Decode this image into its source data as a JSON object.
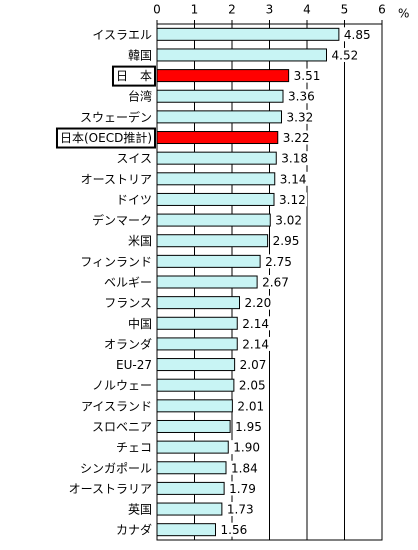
{
  "chart_data": {
    "type": "barh",
    "x_unit": "%",
    "categories": [
      "イスラエル",
      "韓国",
      "日　本",
      "台湾",
      "スウェーデン",
      "日本(OECD推計)",
      "スイス",
      "オーストリア",
      "ドイツ",
      "デンマーク",
      "米国",
      "フィンランド",
      "ベルギー",
      "フランス",
      "中国",
      "オランダ",
      "EU-27",
      "ノルウェー",
      "アイスランド",
      "スロベニア",
      "チェコ",
      "シンガポール",
      "オーストラリア",
      "英国",
      "カナダ"
    ],
    "values": [
      4.85,
      4.52,
      3.51,
      3.36,
      3.32,
      3.22,
      3.18,
      3.14,
      3.12,
      3.02,
      2.95,
      2.75,
      2.67,
      2.2,
      2.14,
      2.14,
      2.07,
      2.05,
      2.01,
      1.95,
      1.9,
      1.84,
      1.79,
      1.73,
      1.56
    ],
    "value_labels": [
      "4.85",
      "4.52",
      "3.51",
      "3.36",
      "3.32",
      "3.22",
      "3.18",
      "3.14",
      "3.12",
      "3.02",
      "2.95",
      "2.75",
      "2.67",
      "2.20",
      "2.14",
      "2.14",
      "2.07",
      "2.05",
      "2.01",
      "1.95",
      "1.90",
      "1.84",
      "1.79",
      "1.73",
      "1.56"
    ],
    "color": "#c8f4f4",
    "colors": [
      "#c8f4f4",
      "#c8f4f4",
      "#ff0000",
      "#c8f4f4",
      "#c8f4f4",
      "#ff0000",
      "#c8f4f4",
      "#c8f4f4",
      "#c8f4f4",
      "#c8f4f4",
      "#c8f4f4",
      "#c8f4f4",
      "#c8f4f4",
      "#c8f4f4",
      "#c8f4f4",
      "#c8f4f4",
      "#c8f4f4",
      "#c8f4f4",
      "#c8f4f4",
      "#c8f4f4",
      "#c8f4f4",
      "#c8f4f4",
      "#c8f4f4",
      "#c8f4f4",
      "#c8f4f4"
    ],
    "xlim": [
      0,
      6
    ],
    "xticks": [
      0,
      1,
      2,
      3,
      4,
      5,
      6
    ],
    "grid": true
  }
}
